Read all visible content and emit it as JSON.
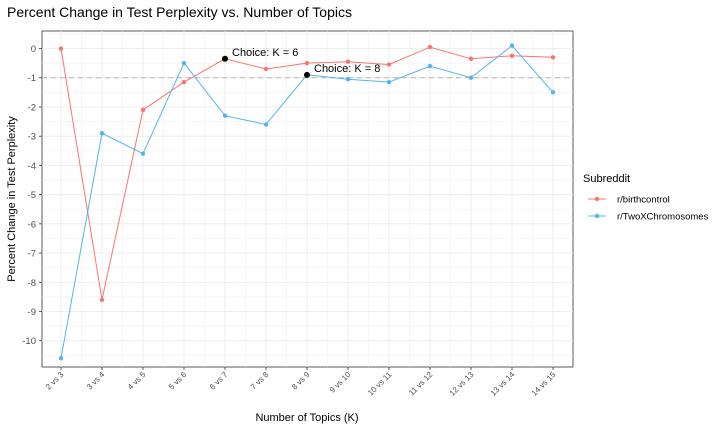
{
  "chart_data": {
    "type": "line",
    "title": "Percent Change in Test Perplexity vs. Number of Topics",
    "xlabel": "Number of Topics (K)",
    "ylabel": "Percent Change in Test Perplexity",
    "categories": [
      "2 vs 3",
      "3 vs 4",
      "4 vs 5",
      "5 vs 6",
      "6 vs 7",
      "7 vs 8",
      "8 vs 9",
      "9 vs 10",
      "10 vs 11",
      "11 vs 12",
      "12 vs 13",
      "13 vs 14",
      "14 vs 15"
    ],
    "ylim": [
      -10.9,
      0.6
    ],
    "yticks": [
      0,
      -1,
      -2,
      -3,
      -4,
      -5,
      -6,
      -7,
      -8,
      -9,
      -10
    ],
    "reference_line": -1,
    "grid": true,
    "legend_title": "Subreddit",
    "legend_position": "right",
    "series": [
      {
        "name": "r/birthcontrol",
        "color": "#f8766d",
        "values": [
          0.0,
          -8.6,
          -2.1,
          -1.15,
          -0.35,
          -0.7,
          -0.5,
          -0.45,
          -0.55,
          0.05,
          -0.35,
          -0.25,
          -0.3
        ]
      },
      {
        "name": "r/TwoXChromosomes",
        "color": "#56b4e9",
        "values": [
          -10.6,
          -2.9,
          -3.6,
          -0.5,
          -2.3,
          -2.6,
          -0.9,
          -1.05,
          -1.15,
          -0.6,
          -1.0,
          0.1,
          -1.5
        ]
      }
    ],
    "annotations": [
      {
        "label": "Choice:  K = 6",
        "category_index": 4,
        "value": -0.35
      },
      {
        "label": "Choice:  K = 8",
        "category_index": 6,
        "value": -0.9
      }
    ]
  }
}
